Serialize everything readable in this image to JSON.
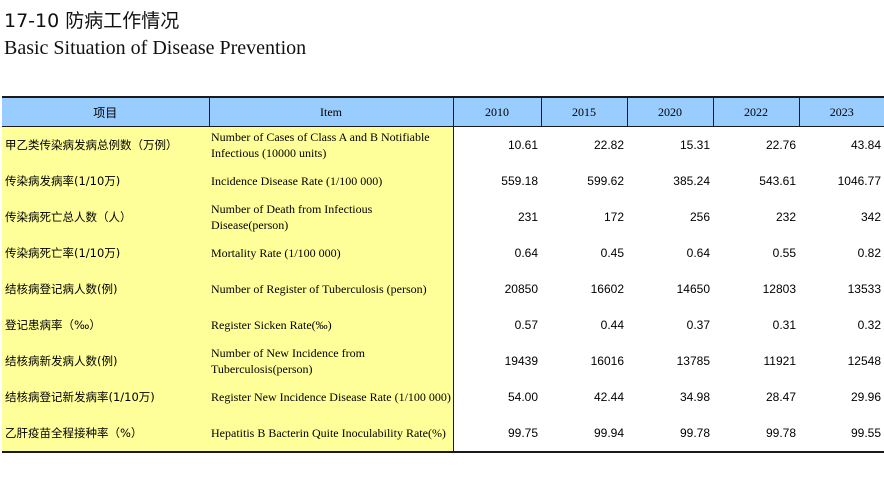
{
  "title_cn": "17-10 防病工作情况",
  "title_en": "Basic Situation of Disease Prevention",
  "headers": {
    "item_cn": "项目",
    "item_en": "Item",
    "years": [
      "2010",
      "2015",
      "2020",
      "2022",
      "2023"
    ]
  },
  "rows": [
    {
      "cn": "甲乙类传染病发病总例数（万例）",
      "en": "Number of Cases of Class A and B Notifiable Infectious (10000 units)",
      "values": [
        "10.61",
        "22.82",
        "15.31",
        "22.76",
        "43.84"
      ]
    },
    {
      "cn": "传染病发病率(1/10万)",
      "en": "Incidence Disease Rate (1/100 000)",
      "values": [
        "559.18",
        "599.62",
        "385.24",
        "543.61",
        "1046.77"
      ]
    },
    {
      "cn": "传染病死亡总人数（人）",
      "en": "Number of Death from Infectious Disease(person)",
      "values": [
        "231",
        "172",
        "256",
        "232",
        "342"
      ]
    },
    {
      "cn": "传染病死亡率(1/10万)",
      "en": "Mortality Rate (1/100 000)",
      "values": [
        "0.64",
        "0.45",
        "0.64",
        "0.55",
        "0.82"
      ]
    },
    {
      "cn": "结核病登记病人数(例)",
      "en": "Number of Register of Tuberculosis (person)",
      "values": [
        "20850",
        "16602",
        "14650",
        "12803",
        "13533"
      ]
    },
    {
      "cn": "登记患病率（‰）",
      "en": "Register Sicken Rate(‰)",
      "values": [
        "0.57",
        "0.44",
        "0.37",
        "0.31",
        "0.32"
      ]
    },
    {
      "cn": "结核病新发病人数(例)",
      "en": "Number of New Incidence from Tuberculosis(person)",
      "values": [
        "19439",
        "16016",
        "13785",
        "11921",
        "12548"
      ]
    },
    {
      "cn": "结核病登记新发病率(1/10万)",
      "en": "Register New Incidence Disease Rate (1/100 000)",
      "values": [
        "54.00",
        "42.44",
        "34.98",
        "28.47",
        "29.96"
      ]
    },
    {
      "cn": "乙肝疫苗全程接种率（%）",
      "en": "Hepatitis B Bacterin Quite Inoculability Rate(%)",
      "values": [
        "99.75",
        "99.94",
        "99.78",
        "99.78",
        "99.55"
      ]
    }
  ],
  "colors": {
    "header_bg": "#99ccff",
    "item_bg": "#ffff99",
    "rule": "#1a1a1a"
  }
}
